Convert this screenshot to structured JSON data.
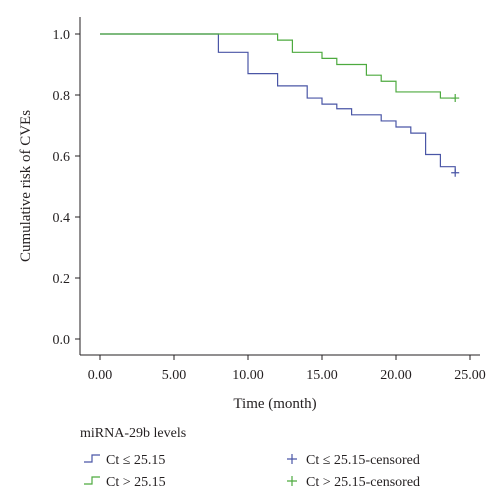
{
  "chart_data": {
    "type": "line",
    "subtype": "kaplan-meier-cumulative-risk",
    "title": "",
    "xlabel": "Time (month)",
    "ylabel": "Cumulative risk of CVEs",
    "xlim": [
      0,
      25
    ],
    "ylim": [
      0,
      1
    ],
    "x_ticks": [
      0,
      5,
      10,
      15,
      20,
      25
    ],
    "x_tick_labels": [
      "0.00",
      "5.00",
      "10.00",
      "15.00",
      "20.00",
      "25.00"
    ],
    "y_ticks": [
      0,
      0.2,
      0.4,
      0.6,
      0.8,
      1.0
    ],
    "y_tick_labels": [
      "0.0",
      "0.2",
      "0.4",
      "0.6",
      "0.8",
      "1.0"
    ],
    "grid": false,
    "legend": {
      "placement": "bottom",
      "title": "miRNA-29b levels",
      "entries": [
        {
          "label": "Ct ≤ 25.15",
          "symbol": "step",
          "color": "#4a56a6"
        },
        {
          "label": "Ct > 25.15",
          "symbol": "step",
          "color": "#4daa3f"
        },
        {
          "label": "Ct ≤ 25.15-censored",
          "symbol": "plus",
          "color": "#4a56a6"
        },
        {
          "label": "Ct > 25.15-censored",
          "symbol": "plus",
          "color": "#4daa3f"
        }
      ]
    },
    "series": [
      {
        "name": "Ct ≤ 25.15",
        "color": "#4a56a6",
        "steps": [
          {
            "x": 0,
            "y": 1.0
          },
          {
            "x": 8,
            "y": 0.94
          },
          {
            "x": 10,
            "y": 0.87
          },
          {
            "x": 12,
            "y": 0.83
          },
          {
            "x": 14,
            "y": 0.79
          },
          {
            "x": 15,
            "y": 0.77
          },
          {
            "x": 16,
            "y": 0.755
          },
          {
            "x": 17,
            "y": 0.735
          },
          {
            "x": 19,
            "y": 0.715
          },
          {
            "x": 20,
            "y": 0.695
          },
          {
            "x": 21,
            "y": 0.675
          },
          {
            "x": 22,
            "y": 0.605
          },
          {
            "x": 23,
            "y": 0.565
          },
          {
            "x": 24,
            "y": 0.545
          }
        ],
        "censored": [
          {
            "x": 24,
            "y": 0.545
          }
        ]
      },
      {
        "name": "Ct > 25.15",
        "color": "#4daa3f",
        "steps": [
          {
            "x": 0,
            "y": 1.0
          },
          {
            "x": 12,
            "y": 0.98
          },
          {
            "x": 13,
            "y": 0.94
          },
          {
            "x": 15,
            "y": 0.92
          },
          {
            "x": 16,
            "y": 0.9
          },
          {
            "x": 18,
            "y": 0.865
          },
          {
            "x": 19,
            "y": 0.845
          },
          {
            "x": 20,
            "y": 0.81
          },
          {
            "x": 23,
            "y": 0.79
          }
        ],
        "censored": [
          {
            "x": 24,
            "y": 0.79
          }
        ]
      }
    ]
  }
}
